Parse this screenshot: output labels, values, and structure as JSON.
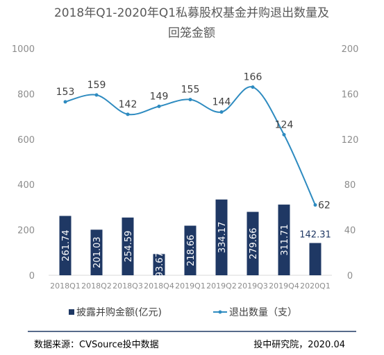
{
  "chart_data": {
    "type": "bar",
    "title": [
      "2018年Q1-2020年Q1私募股权基金并购退出数量及",
      "回笼金额"
    ],
    "categories": [
      "2018Q1",
      "2018Q2",
      "2018Q3",
      "2018Q4",
      "2019Q1",
      "2019Q2",
      "2019Q3",
      "2019Q4",
      "2020Q1"
    ],
    "series": [
      {
        "name": "披露并购金额(亿元)",
        "type": "bar",
        "axis": "left",
        "values": [
          261.74,
          201.03,
          254.59,
          93.67,
          218.66,
          334.17,
          279.66,
          311.71,
          142.31
        ],
        "labels": [
          "261.74",
          "201.03",
          "254.59",
          "93.67",
          "218.66",
          "334.17",
          "279.66",
          "311.71",
          "142.31"
        ],
        "color": "#1f3864"
      },
      {
        "name": "退出数量（支）",
        "type": "line",
        "axis": "right",
        "values": [
          153,
          159,
          142,
          149,
          155,
          144,
          166,
          124,
          62
        ],
        "labels": [
          "153",
          "159",
          "142",
          "149",
          "155",
          "144",
          "166",
          "124",
          "62"
        ],
        "color": "#2e8bc0"
      }
    ],
    "y_left": {
      "min": 0,
      "max": 1000,
      "ticks": [
        "0",
        "200",
        "400",
        "600",
        "800",
        "1000"
      ]
    },
    "y_right": {
      "min": 0,
      "max": 200,
      "ticks": [
        "0",
        "40",
        "80",
        "120",
        "160",
        "200"
      ]
    },
    "grid": false,
    "legend": "bottom"
  },
  "footer": {
    "source": "数据来源：CVSource投中数据",
    "publisher": "投中研究院，2020.04"
  }
}
